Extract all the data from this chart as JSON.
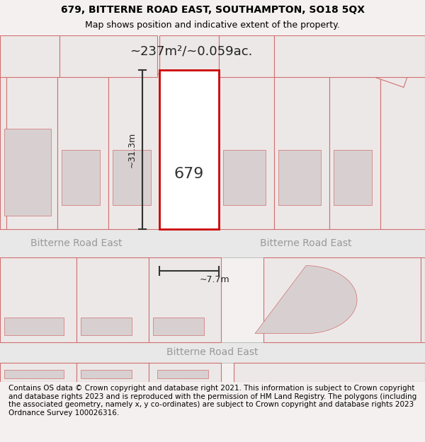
{
  "title_line1": "679, BITTERNE ROAD EAST, SOUTHAMPTON, SO18 5QX",
  "title_line2": "Map shows position and indicative extent of the property.",
  "area_text": "~237m²/~0.059ac.",
  "label_679": "679",
  "dim_height": "~31.3m",
  "dim_width": "~7.7m",
  "road_name": "Bitterne Road East",
  "footer_text": "Contains OS data © Crown copyright and database right 2021. This information is subject to Crown copyright and database rights 2023 and is reproduced with the permission of HM Land Registry. The polygons (including the associated geometry, namely x, y co-ordinates) are subject to Crown copyright and database rights 2023 Ordnance Survey 100026316.",
  "bg_color": "#f5f0f0",
  "map_bg": "#f9f6f6",
  "road_bg": "#eeeeee",
  "plot_color_fill": "#ffffff",
  "plot_color_edge": "#cc0000",
  "neighbor_fill": "#f0ecec",
  "neighbor_edge": "#e08080",
  "dark_neighbor_fill": "#d8d0d0",
  "title_fontsize": 10,
  "footer_fontsize": 7.5
}
